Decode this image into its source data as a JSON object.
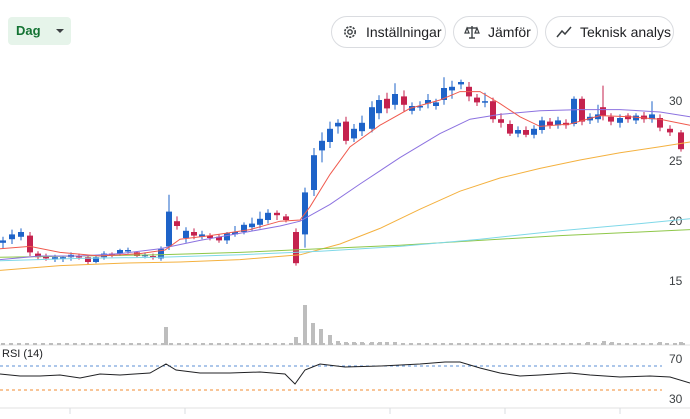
{
  "toolbar": {
    "period": "Dag",
    "settings_label": "Inställningar",
    "compare_label": "Jämför",
    "technical_label": "Teknisk analys",
    "icons": [
      "gear-icon",
      "scale-icon",
      "trend-line-icon"
    ]
  },
  "price_axis": {
    "ticks": [
      "30",
      "25",
      "20",
      "15"
    ]
  },
  "rsi": {
    "title": "RSI (14)",
    "levels": [
      "70",
      "30"
    ],
    "level_colors": [
      "#5b8fd6",
      "#f28b30"
    ]
  },
  "colors": {
    "up": "#1e63c8",
    "down": "#c5224e",
    "ma_red": "#f05a4e",
    "ma_purple": "#8c72e0",
    "ma_orange": "#f4b13f",
    "ma_green": "#8fc74a",
    "ma_cyan": "#7fd8e8",
    "volume": "#bdbdbd"
  }
}
